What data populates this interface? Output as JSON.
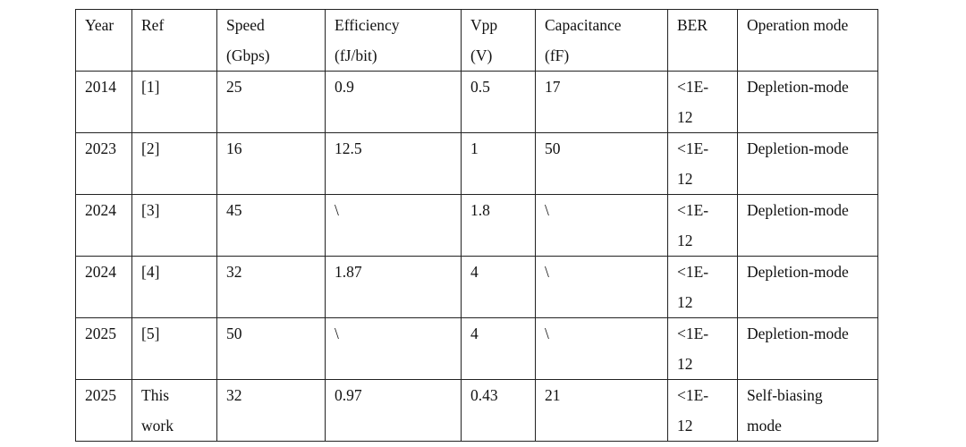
{
  "table": {
    "headers": [
      [
        "Year"
      ],
      [
        "Ref"
      ],
      [
        "Speed",
        "(Gbps)"
      ],
      [
        "Efficiency",
        "(fJ/bit)"
      ],
      [
        "Vpp",
        "(V)"
      ],
      [
        "Capacitance",
        "(fF)"
      ],
      [
        "BER"
      ],
      [
        "Operation mode"
      ]
    ],
    "rows": [
      [
        [
          "2014"
        ],
        [
          "[1]"
        ],
        [
          "25"
        ],
        [
          "0.9"
        ],
        [
          "0.5"
        ],
        [
          "17"
        ],
        [
          "<1E-",
          "12"
        ],
        [
          "Depletion-mode"
        ]
      ],
      [
        [
          "2023"
        ],
        [
          "[2]"
        ],
        [
          "16"
        ],
        [
          "12.5"
        ],
        [
          "1"
        ],
        [
          "50"
        ],
        [
          "<1E-",
          "12"
        ],
        [
          "Depletion-mode"
        ]
      ],
      [
        [
          "2024"
        ],
        [
          "[3]"
        ],
        [
          "45"
        ],
        [
          "\\"
        ],
        [
          "1.8"
        ],
        [
          "\\"
        ],
        [
          "<1E-",
          "12"
        ],
        [
          "Depletion-mode"
        ]
      ],
      [
        [
          "2024"
        ],
        [
          "[4]"
        ],
        [
          "32"
        ],
        [
          "1.87"
        ],
        [
          "4"
        ],
        [
          "\\"
        ],
        [
          "<1E-",
          "12"
        ],
        [
          "Depletion-mode"
        ]
      ],
      [
        [
          "2025"
        ],
        [
          "[5]"
        ],
        [
          "50"
        ],
        [
          "\\"
        ],
        [
          "4"
        ],
        [
          "\\"
        ],
        [
          "<1E-",
          "12"
        ],
        [
          "Depletion-mode"
        ]
      ],
      [
        [
          "2025"
        ],
        [
          "This",
          "work"
        ],
        [
          "32"
        ],
        [
          "0.97"
        ],
        [
          "0.43"
        ],
        [
          "21"
        ],
        [
          "<1E-",
          "12"
        ],
        [
          "Self-biasing",
          "mode"
        ]
      ]
    ]
  }
}
